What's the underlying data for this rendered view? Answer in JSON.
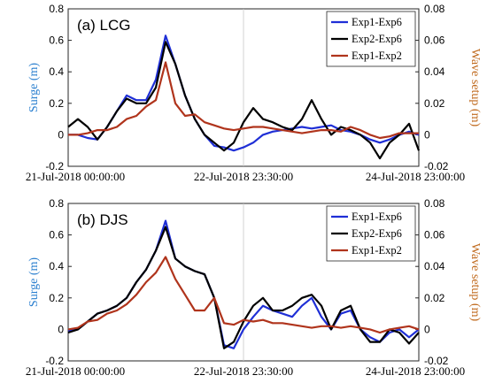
{
  "chart_data": [
    {
      "type": "line",
      "title": "(a) LCG",
      "ylabel": "Surge (m)",
      "ylabel_right": "Wave setup (m)",
      "x_ticks": [
        "21-Jul-2018 00:00:00",
        "22-Jul-2018 23:30:00",
        "24-Jul-2018 23:00:00"
      ],
      "y_ticks": [
        "-0.2",
        "0",
        "0.2",
        "0.4",
        "0.6",
        "0.8"
      ],
      "y_right_ticks": [
        "-0.02",
        "0",
        "0.02",
        "0.04",
        "0.06",
        "0.08"
      ],
      "ylim": [
        -0.2,
        0.8
      ],
      "ylim_right": [
        -0.02,
        0.08
      ],
      "xlim": [
        0,
        72
      ],
      "grid": "x-major",
      "legend_position": "top-right",
      "series": [
        {
          "name": "Exp1-Exp6",
          "color": "#1f2fd6",
          "axis": "left",
          "x": [
            0,
            2,
            4,
            6,
            8,
            10,
            12,
            14,
            16,
            18,
            20,
            22,
            24,
            26,
            28,
            30,
            32,
            34,
            36,
            38,
            40,
            42,
            44,
            46,
            48,
            50,
            52,
            54,
            56,
            58,
            60,
            62,
            64,
            66,
            68,
            70,
            72
          ],
          "y": [
            0.0,
            0.0,
            -0.02,
            -0.03,
            0.05,
            0.15,
            0.25,
            0.22,
            0.22,
            0.35,
            0.63,
            0.45,
            0.25,
            0.1,
            0.0,
            -0.07,
            -0.08,
            -0.1,
            -0.08,
            -0.05,
            0.0,
            0.02,
            0.03,
            0.04,
            0.05,
            0.04,
            0.05,
            0.06,
            0.03,
            0.02,
            0.0,
            -0.03,
            -0.05,
            -0.03,
            0.0,
            0.02,
            0.0
          ]
        },
        {
          "name": "Exp2-Exp6",
          "color": "#000000",
          "axis": "left",
          "x": [
            0,
            2,
            4,
            6,
            8,
            10,
            12,
            14,
            16,
            18,
            20,
            22,
            24,
            26,
            28,
            30,
            32,
            34,
            36,
            38,
            40,
            42,
            44,
            46,
            48,
            50,
            52,
            54,
            56,
            58,
            60,
            62,
            64,
            66,
            68,
            70,
            72
          ],
          "y": [
            0.05,
            0.1,
            0.05,
            -0.03,
            0.05,
            0.15,
            0.23,
            0.2,
            0.2,
            0.3,
            0.59,
            0.45,
            0.25,
            0.1,
            0.0,
            -0.05,
            -0.1,
            -0.05,
            0.08,
            0.17,
            0.1,
            0.08,
            0.05,
            0.03,
            0.1,
            0.22,
            0.1,
            0.0,
            0.05,
            0.03,
            0.0,
            -0.05,
            -0.15,
            -0.05,
            0.0,
            0.07,
            -0.1
          ]
        },
        {
          "name": "Exp1-Exp2",
          "color": "#b0341c",
          "axis": "right",
          "x": [
            0,
            2,
            4,
            6,
            8,
            10,
            12,
            14,
            16,
            18,
            20,
            22,
            24,
            26,
            28,
            30,
            32,
            34,
            36,
            38,
            40,
            42,
            44,
            46,
            48,
            50,
            52,
            54,
            56,
            58,
            60,
            62,
            64,
            66,
            68,
            70,
            72
          ],
          "y": [
            0.0,
            0.0,
            0.001,
            0.003,
            0.003,
            0.005,
            0.01,
            0.012,
            0.018,
            0.022,
            0.046,
            0.02,
            0.012,
            0.013,
            0.008,
            0.006,
            0.004,
            0.003,
            0.004,
            0.005,
            0.005,
            0.004,
            0.003,
            0.002,
            0.001,
            0.002,
            0.003,
            0.003,
            0.002,
            0.005,
            0.003,
            0.0,
            -0.002,
            -0.001,
            0.001,
            0.001,
            0.001
          ]
        }
      ]
    },
    {
      "type": "line",
      "title": "(b) DJS",
      "ylabel": "Surge (m)",
      "ylabel_right": "Wave setup (m)",
      "x_ticks": [
        "21-Jul-2018 00:00:00",
        "22-Jul-2018 23:30:00",
        "24-Jul-2018 23:00:00"
      ],
      "y_ticks": [
        "-0.2",
        "0",
        "0.2",
        "0.4",
        "0.6",
        "0.8"
      ],
      "y_right_ticks": [
        "-0.02",
        "0",
        "0.02",
        "0.04",
        "0.06",
        "0.08"
      ],
      "ylim": [
        -0.2,
        0.8
      ],
      "ylim_right": [
        -0.02,
        0.08
      ],
      "xlim": [
        0,
        72
      ],
      "grid": "x-major",
      "legend_position": "top-right",
      "series": [
        {
          "name": "Exp1-Exp6",
          "color": "#1f2fd6",
          "axis": "left",
          "x": [
            0,
            2,
            4,
            6,
            8,
            10,
            12,
            14,
            16,
            18,
            20,
            22,
            24,
            26,
            28,
            30,
            32,
            34,
            36,
            38,
            40,
            42,
            44,
            46,
            48,
            50,
            52,
            54,
            56,
            58,
            60,
            62,
            64,
            66,
            68,
            70,
            72
          ],
          "y": [
            -0.01,
            0.0,
            0.05,
            0.1,
            0.12,
            0.15,
            0.2,
            0.3,
            0.38,
            0.5,
            0.69,
            0.45,
            0.4,
            0.37,
            0.35,
            0.2,
            -0.1,
            -0.12,
            0.0,
            0.08,
            0.15,
            0.12,
            0.1,
            0.08,
            0.15,
            0.2,
            0.08,
            0.0,
            0.1,
            0.12,
            0.0,
            -0.05,
            -0.08,
            -0.02,
            0.0,
            -0.05,
            0.0
          ]
        },
        {
          "name": "Exp2-Exp6",
          "color": "#000000",
          "axis": "left",
          "x": [
            0,
            2,
            4,
            6,
            8,
            10,
            12,
            14,
            16,
            18,
            20,
            22,
            24,
            26,
            28,
            30,
            32,
            34,
            36,
            38,
            40,
            42,
            44,
            46,
            48,
            50,
            52,
            54,
            56,
            58,
            60,
            62,
            64,
            66,
            68,
            70,
            72
          ],
          "y": [
            -0.02,
            0.0,
            0.05,
            0.1,
            0.12,
            0.15,
            0.2,
            0.3,
            0.38,
            0.5,
            0.65,
            0.45,
            0.4,
            0.37,
            0.35,
            0.2,
            -0.12,
            -0.08,
            0.05,
            0.15,
            0.2,
            0.12,
            0.12,
            0.15,
            0.2,
            0.22,
            0.15,
            0.0,
            0.12,
            0.15,
            0.0,
            -0.08,
            -0.08,
            0.0,
            -0.02,
            -0.09,
            -0.02
          ]
        },
        {
          "name": "Exp1-Exp2",
          "color": "#b0341c",
          "axis": "right",
          "x": [
            0,
            2,
            4,
            6,
            8,
            10,
            12,
            14,
            16,
            18,
            20,
            22,
            24,
            26,
            28,
            30,
            32,
            34,
            36,
            38,
            40,
            42,
            44,
            46,
            48,
            50,
            52,
            54,
            56,
            58,
            60,
            62,
            64,
            66,
            68,
            70,
            72
          ],
          "y": [
            0.0,
            0.001,
            0.005,
            0.006,
            0.01,
            0.012,
            0.016,
            0.022,
            0.03,
            0.036,
            0.046,
            0.032,
            0.022,
            0.012,
            0.012,
            0.02,
            0.004,
            0.003,
            0.006,
            0.005,
            0.006,
            0.004,
            0.004,
            0.003,
            0.002,
            0.001,
            0.002,
            0.002,
            0.001,
            0.002,
            0.001,
            0.0,
            -0.002,
            0.0,
            0.001,
            0.002,
            0.0
          ]
        }
      ]
    }
  ]
}
